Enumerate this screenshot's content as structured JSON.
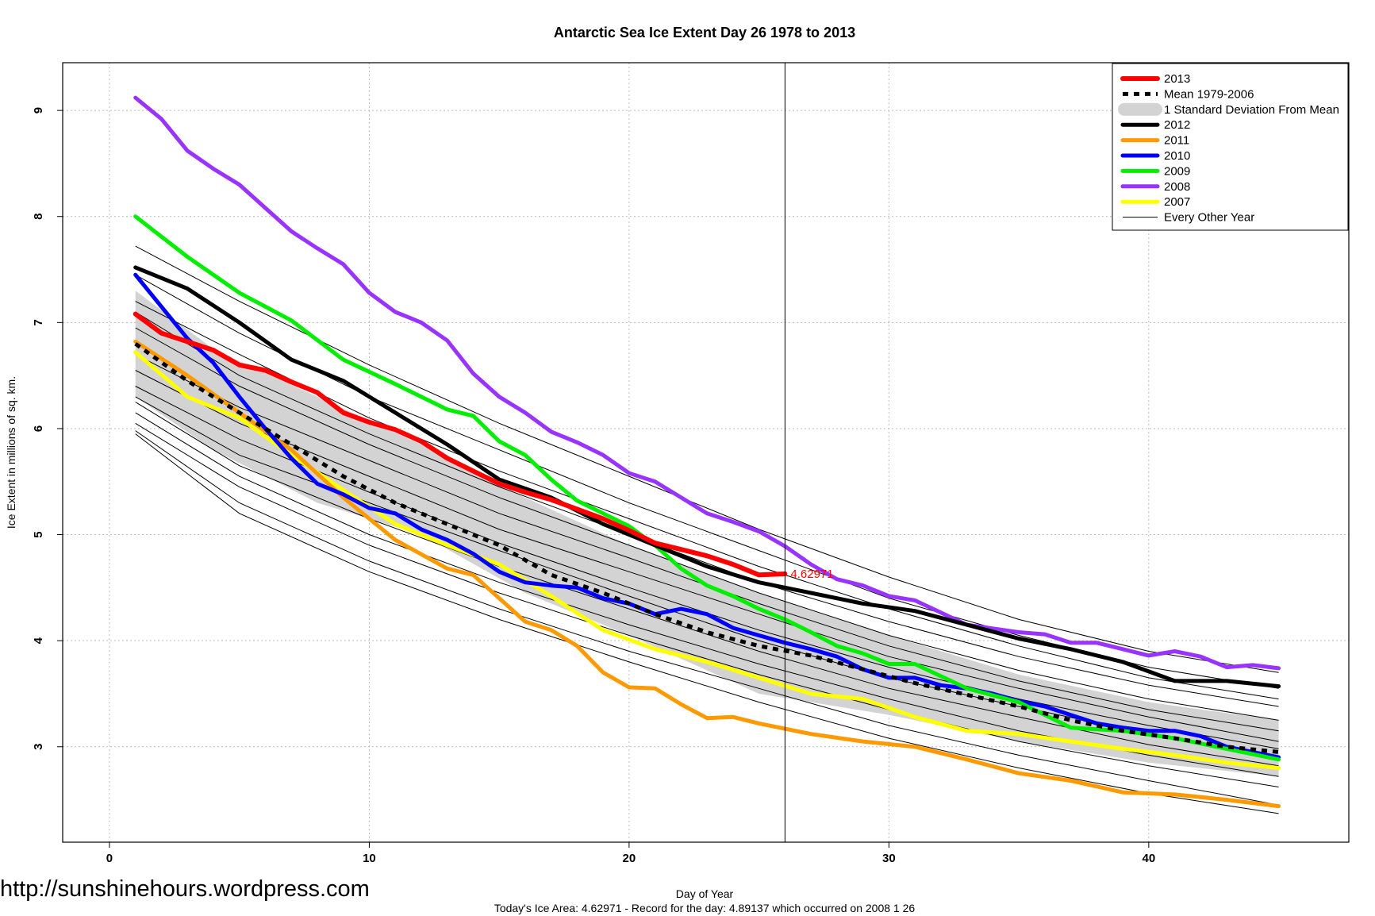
{
  "chart_data": {
    "type": "line",
    "title": "Antarctic Sea Ice Extent Day 26 1978 to 2013",
    "xlabel": "Day of Year",
    "ylabel": "Ice Extent in millions of sq. km.",
    "xlim": [
      -1.8,
      47.7
    ],
    "ylim": [
      2.1,
      9.45
    ],
    "xticks": [
      0,
      10,
      20,
      30,
      40
    ],
    "yticks": [
      3,
      4,
      5,
      6,
      7,
      8,
      9
    ],
    "grid": true,
    "current_day": 26,
    "current_value_label": "4.62971",
    "footer": "Today's Ice Area: 4.62971  - Record for the day: 4.89137 which occurred on 2008 1 26",
    "watermark": "http://sunshinehours.wordpress.com",
    "legend_position": "top-right",
    "band": {
      "name": "1 Standard Deviation From Mean",
      "days": [
        1,
        4,
        8,
        12,
        16,
        20,
        25,
        30,
        35,
        40,
        45
      ],
      "upper": [
        7.3,
        6.75,
        6.3,
        5.85,
        5.35,
        4.9,
        4.45,
        4.05,
        3.68,
        3.42,
        3.25
      ],
      "lower": [
        6.3,
        5.8,
        5.3,
        5.0,
        4.45,
        4.05,
        3.5,
        3.3,
        3.05,
        2.85,
        2.72
      ]
    },
    "series": [
      {
        "name": "2013",
        "color": "#ff0000",
        "width": 6,
        "days": [
          1,
          2,
          3,
          4,
          5,
          6,
          7,
          8,
          9,
          10,
          11,
          12,
          13,
          14,
          15,
          16,
          17,
          18,
          19,
          20,
          21,
          22,
          23,
          24,
          25,
          26
        ],
        "values": [
          7.08,
          6.9,
          6.82,
          6.74,
          6.6,
          6.55,
          6.44,
          6.34,
          6.15,
          6.06,
          5.99,
          5.88,
          5.72,
          5.6,
          5.48,
          5.4,
          5.33,
          5.24,
          5.15,
          5.04,
          4.92,
          4.86,
          4.8,
          4.72,
          4.62,
          4.63
        ]
      },
      {
        "name": "Mean 1979-2006",
        "color": "#000000",
        "width": 5,
        "dash": "7,7",
        "days": [
          1,
          3,
          5,
          7,
          9,
          11,
          13,
          15,
          17,
          19,
          21,
          23,
          25,
          27,
          29,
          31,
          33,
          35,
          37,
          39,
          41,
          43,
          45
        ],
        "values": [
          6.8,
          6.45,
          6.15,
          5.85,
          5.55,
          5.3,
          5.1,
          4.9,
          4.62,
          4.45,
          4.25,
          4.08,
          3.95,
          3.86,
          3.73,
          3.6,
          3.49,
          3.38,
          3.25,
          3.15,
          3.08,
          3.0,
          2.95
        ]
      },
      {
        "name": "2012",
        "color": "#000000",
        "width": 5,
        "days": [
          1,
          3,
          5,
          7,
          9,
          11,
          13,
          15,
          17,
          19,
          21,
          23,
          25,
          27,
          29,
          31,
          33,
          35,
          37,
          39,
          41,
          43,
          45
        ],
        "values": [
          7.52,
          7.32,
          7.0,
          6.65,
          6.45,
          6.15,
          5.85,
          5.52,
          5.35,
          5.1,
          4.9,
          4.7,
          4.55,
          4.45,
          4.35,
          4.28,
          4.15,
          4.02,
          3.92,
          3.8,
          3.62,
          3.62,
          3.57
        ]
      },
      {
        "name": "2011",
        "color": "#ff9900",
        "width": 5,
        "days": [
          1,
          3,
          5,
          7,
          9,
          11,
          13,
          14,
          15,
          16,
          17,
          18,
          19,
          20,
          21,
          22,
          23,
          24,
          25,
          27,
          29,
          31,
          33,
          35,
          37,
          39,
          41,
          43,
          45
        ],
        "values": [
          6.82,
          6.5,
          6.15,
          5.8,
          5.35,
          4.95,
          4.68,
          4.62,
          4.4,
          4.18,
          4.1,
          3.95,
          3.7,
          3.56,
          3.55,
          3.4,
          3.27,
          3.28,
          3.22,
          3.12,
          3.05,
          3.0,
          2.88,
          2.75,
          2.68,
          2.57,
          2.55,
          2.5,
          2.44
        ]
      },
      {
        "name": "2010",
        "color": "#0000ff",
        "width": 5,
        "days": [
          1,
          2,
          3,
          4,
          5,
          6,
          7,
          8,
          9,
          10,
          11,
          12,
          13,
          14,
          15,
          16,
          17,
          18,
          19,
          20,
          21,
          22,
          23,
          24,
          25,
          26,
          27,
          28,
          29,
          30,
          31,
          32,
          33,
          34,
          35,
          36,
          37,
          38,
          39,
          40,
          41,
          42,
          43,
          44,
          45
        ],
        "values": [
          7.45,
          7.15,
          6.85,
          6.62,
          6.3,
          6.0,
          5.72,
          5.48,
          5.38,
          5.25,
          5.2,
          5.05,
          4.95,
          4.82,
          4.65,
          4.55,
          4.52,
          4.5,
          4.4,
          4.35,
          4.25,
          4.3,
          4.25,
          4.12,
          4.05,
          3.98,
          3.92,
          3.85,
          3.73,
          3.65,
          3.65,
          3.58,
          3.55,
          3.5,
          3.43,
          3.38,
          3.3,
          3.22,
          3.18,
          3.15,
          3.15,
          3.1,
          3.0,
          2.95,
          2.9
        ]
      },
      {
        "name": "2009",
        "color": "#00ee00",
        "width": 5,
        "days": [
          1,
          3,
          5,
          7,
          9,
          11,
          13,
          14,
          15,
          16,
          17,
          18,
          19,
          20,
          21,
          22,
          23,
          24,
          25,
          26,
          27,
          28,
          29,
          30,
          31,
          33,
          35,
          37,
          39,
          41,
          43,
          45
        ],
        "values": [
          8.0,
          7.62,
          7.28,
          7.02,
          6.65,
          6.42,
          6.18,
          6.12,
          5.88,
          5.75,
          5.52,
          5.32,
          5.2,
          5.08,
          4.9,
          4.68,
          4.52,
          4.42,
          4.3,
          4.2,
          4.08,
          3.95,
          3.88,
          3.78,
          3.78,
          3.55,
          3.42,
          3.18,
          3.15,
          3.08,
          2.98,
          2.88
        ]
      },
      {
        "name": "2008",
        "color": "#9933ff",
        "width": 5,
        "days": [
          1,
          2,
          3,
          4,
          5,
          6,
          7,
          8,
          9,
          10,
          11,
          12,
          13,
          14,
          15,
          16,
          17,
          18,
          19,
          20,
          21,
          22,
          23,
          24,
          25,
          26,
          27,
          28,
          29,
          30,
          31,
          33,
          35,
          36,
          37,
          38,
          39,
          40,
          41,
          42,
          43,
          44,
          45
        ],
        "values": [
          9.12,
          8.92,
          8.62,
          8.45,
          8.3,
          8.08,
          7.86,
          7.7,
          7.55,
          7.28,
          7.1,
          7.0,
          6.83,
          6.52,
          6.3,
          6.15,
          5.97,
          5.87,
          5.75,
          5.58,
          5.5,
          5.35,
          5.2,
          5.12,
          5.03,
          4.89,
          4.72,
          4.58,
          4.52,
          4.42,
          4.38,
          4.15,
          4.08,
          4.06,
          3.98,
          3.98,
          3.92,
          3.86,
          3.9,
          3.85,
          3.75,
          3.77,
          3.74
        ]
      },
      {
        "name": "2007",
        "color": "#ffff00",
        "width": 5,
        "days": [
          1,
          3,
          5,
          7,
          9,
          11,
          13,
          15,
          17,
          19,
          21,
          23,
          25,
          27,
          29,
          31,
          33,
          35,
          37,
          39,
          41,
          43,
          45
        ],
        "values": [
          6.72,
          6.3,
          6.1,
          5.75,
          5.42,
          5.1,
          4.9,
          4.72,
          4.42,
          4.1,
          3.92,
          3.8,
          3.65,
          3.5,
          3.45,
          3.28,
          3.15,
          3.12,
          3.05,
          2.98,
          2.92,
          2.85,
          2.8
        ]
      }
    ],
    "other_years": {
      "name": "Every Other Year",
      "color": "#000000",
      "width": 1,
      "days": [
        1,
        5,
        10,
        15,
        20,
        25,
        30,
        35,
        40,
        45
      ],
      "lines": [
        [
          7.72,
          7.2,
          6.6,
          6.05,
          5.55,
          5.05,
          4.6,
          4.2,
          3.9,
          3.7
        ],
        [
          7.45,
          6.9,
          6.3,
          5.8,
          5.3,
          4.85,
          4.4,
          4.05,
          3.75,
          3.55
        ],
        [
          7.2,
          6.7,
          6.1,
          5.6,
          5.15,
          4.7,
          4.3,
          3.95,
          3.65,
          3.45
        ],
        [
          7.1,
          6.5,
          5.95,
          5.45,
          5.0,
          4.55,
          4.18,
          3.85,
          3.58,
          3.38
        ],
        [
          6.95,
          6.4,
          5.85,
          5.35,
          4.9,
          4.45,
          4.05,
          3.72,
          3.45,
          3.25
        ],
        [
          6.7,
          6.2,
          5.7,
          5.2,
          4.78,
          4.35,
          3.95,
          3.62,
          3.35,
          3.15
        ],
        [
          6.55,
          6.05,
          5.55,
          5.05,
          4.65,
          4.25,
          3.85,
          3.55,
          3.28,
          3.05
        ],
        [
          6.4,
          5.9,
          5.4,
          4.92,
          4.5,
          4.1,
          3.75,
          3.45,
          3.2,
          2.98
        ],
        [
          6.3,
          5.75,
          5.3,
          4.85,
          4.42,
          4.0,
          3.65,
          3.38,
          3.12,
          2.9
        ],
        [
          6.25,
          5.65,
          5.15,
          4.7,
          4.3,
          3.9,
          3.55,
          3.28,
          3.02,
          2.82
        ],
        [
          6.15,
          5.55,
          5.0,
          4.55,
          4.15,
          3.78,
          3.45,
          3.15,
          2.92,
          2.72
        ],
        [
          6.05,
          5.45,
          4.9,
          4.45,
          4.05,
          3.68,
          3.35,
          3.05,
          2.82,
          2.62
        ],
        [
          5.98,
          5.3,
          4.75,
          4.3,
          3.9,
          3.55,
          3.2,
          2.92,
          2.68,
          2.45
        ],
        [
          5.95,
          5.2,
          4.65,
          4.2,
          3.8,
          3.42,
          3.08,
          2.8,
          2.56,
          2.37
        ]
      ]
    }
  }
}
